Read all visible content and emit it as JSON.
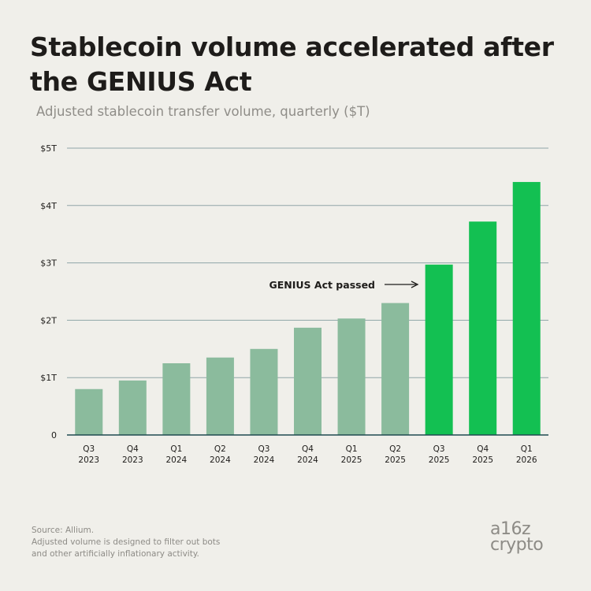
{
  "title": "Stablecoin volume accelerated after the GENIUS Act",
  "subtitle": "Adjusted stablecoin transfer volume, quarterly ($T)",
  "colors": {
    "before": "#8bbb9d",
    "after": "#13c052",
    "grid": "#8fa6a8",
    "baseline": "#1f4a4f",
    "text": "#1e1c1a"
  },
  "chart_data": {
    "type": "bar",
    "title": "Stablecoin volume accelerated after the GENIUS Act",
    "subtitle": "Adjusted stablecoin transfer volume, quarterly ($T)",
    "xlabel": "",
    "ylabel": "",
    "ylim": [
      0,
      5
    ],
    "yticks": [
      0,
      1,
      2,
      3,
      4,
      5
    ],
    "ytick_labels": [
      "0",
      "$1T",
      "$2T",
      "$3T",
      "$4T",
      "$5T"
    ],
    "categories": [
      [
        "Q3",
        "2023"
      ],
      [
        "Q4",
        "2023"
      ],
      [
        "Q1",
        "2024"
      ],
      [
        "Q2",
        "2024"
      ],
      [
        "Q3",
        "2024"
      ],
      [
        "Q4",
        "2024"
      ],
      [
        "Q1",
        "2025"
      ],
      [
        "Q2",
        "2025"
      ],
      [
        "Q3",
        "2025"
      ],
      [
        "Q4",
        "2025"
      ],
      [
        "Q1",
        "2026"
      ]
    ],
    "values": [
      0.8,
      0.95,
      1.25,
      1.35,
      1.5,
      1.87,
      2.03,
      2.3,
      2.97,
      3.72,
      4.41
    ],
    "highlight_from_index": 8,
    "grid": true,
    "annotation": "GENIUS Act passed"
  },
  "source": {
    "line1": "Source: Allium.",
    "line2": "Adjusted volume is designed to filter out bots",
    "line3": "and other artificially inflationary activity."
  },
  "logo": {
    "line1": "a16z",
    "line2": "crypto"
  }
}
